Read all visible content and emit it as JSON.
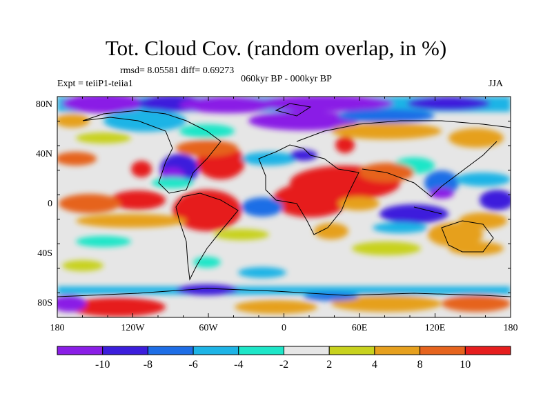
{
  "title": "Tot. Cloud Cov. (random overlap, in %)",
  "stats": "rmsd= 8.05581 diff= 0.69273",
  "period": "060kyr BP - 000kyr BP",
  "experiment": "Expt = teiiP1-teiia1",
  "season": "JJA",
  "axes": {
    "y_ticks": [
      "80N",
      "40N",
      "0",
      "40S",
      "80S"
    ],
    "x_ticks": [
      "180",
      "120W",
      "60W",
      "0",
      "60E",
      "120E",
      "180"
    ]
  },
  "colorbar": {
    "labels": [
      "-10",
      "-8",
      "-6",
      "-4",
      "-2",
      "2",
      "4",
      "8",
      "10"
    ],
    "colors": [
      "#8a1ee6",
      "#3c1edc",
      "#1e6ee6",
      "#1eb4e6",
      "#1ee6c8",
      "#e6e6e6",
      "#c8d21e",
      "#e6a01e",
      "#e6641e",
      "#e61e1e"
    ]
  }
}
